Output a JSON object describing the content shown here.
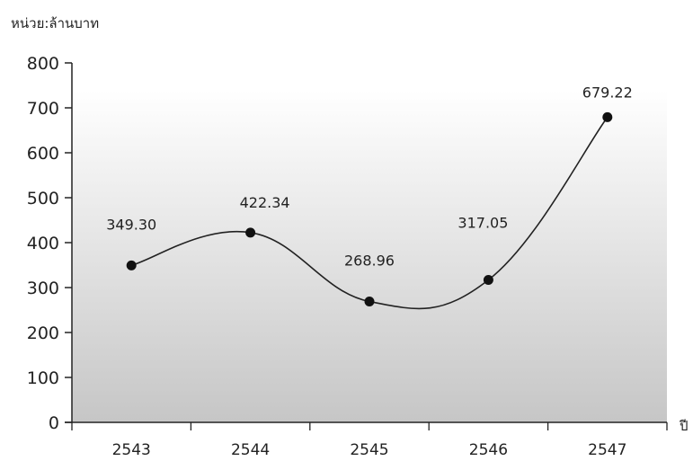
{
  "unit_label": "หน่วย:ล้านบาท",
  "x_unit": "ปี",
  "chart_data": {
    "type": "line",
    "title": "",
    "xlabel": "ปี",
    "ylabel": "หน่วย:ล้านบาท",
    "categories": [
      "2543",
      "2544",
      "2545",
      "2546",
      "2547"
    ],
    "values": [
      349.3,
      422.34,
      268.96,
      317.05,
      679.22
    ],
    "data_labels": [
      "349.30",
      "422.34",
      "268.96",
      "317.05",
      "679.22"
    ],
    "ylim": [
      0,
      800
    ],
    "yticks": [
      0,
      100,
      200,
      300,
      400,
      500,
      600,
      700,
      800
    ],
    "grid": false,
    "smooth": true,
    "colors": {
      "line": "#222222",
      "marker": "#111111",
      "background_top": "#ffffff",
      "background_bottom": "#c6c6c6"
    }
  }
}
